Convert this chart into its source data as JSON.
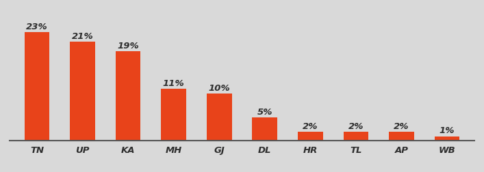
{
  "categories": [
    "TN",
    "UP",
    "KA",
    "MH",
    "GJ",
    "DL",
    "HR",
    "TL",
    "AP",
    "WB"
  ],
  "values": [
    23,
    21,
    19,
    11,
    10,
    5,
    2,
    2,
    2,
    1
  ],
  "labels": [
    "23%",
    "21%",
    "19%",
    "11%",
    "10%",
    "5%",
    "2%",
    "2%",
    "2%",
    "1%"
  ],
  "bar_color": "#E8431A",
  "background_color": "#D9D9D9",
  "label_color": "#2E2E2E",
  "tick_label_color": "#2E2E2E",
  "label_fontsize": 9.5,
  "tick_fontsize": 9.5,
  "bar_width": 0.55,
  "ylim": [
    0,
    27
  ],
  "fig_width": 7.07,
  "fig_height": 2.53,
  "dpi": 100
}
